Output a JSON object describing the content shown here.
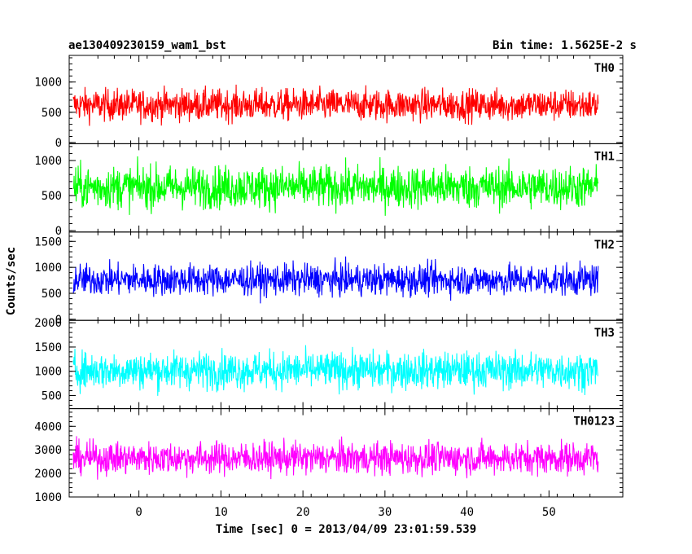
{
  "chart_data": {
    "type": "line",
    "title_left": "ae130409230159_wam1_bst",
    "title_right": "Bin time: 1.5625E-2 s",
    "xlabel": "Time [sec] 0 = 2013/04/09 23:01:59.539",
    "ylabel": "Counts/sec",
    "xlim": [
      -8.5,
      59
    ],
    "x_ticks": [
      0,
      10,
      20,
      30,
      40,
      50
    ],
    "data_x_range": [
      -8,
      56
    ],
    "bin_time": 0.015625,
    "panels": [
      {
        "name": "TH0",
        "color": "#ff0000",
        "ylim": [
          -20,
          1440
        ],
        "y_ticks": [
          0,
          500,
          1000
        ],
        "mean": 620,
        "spread": 130,
        "min": 130,
        "max": 1400
      },
      {
        "name": "TH1",
        "color": "#00ff00",
        "ylim": [
          -20,
          1240
        ],
        "y_ticks": [
          0,
          500,
          1000
        ],
        "mean": 620,
        "spread": 150,
        "min": 60,
        "max": 1240
      },
      {
        "name": "TH2",
        "color": "#0000ff",
        "ylim": [
          -20,
          1680
        ],
        "y_ticks": [
          0,
          500,
          1000,
          1500
        ],
        "mean": 760,
        "spread": 150,
        "min": 120,
        "max": 1580
      },
      {
        "name": "TH3",
        "color": "#00ffff",
        "ylim": [
          230,
          2050
        ],
        "y_ticks": [
          500,
          1000,
          1500,
          2000
        ],
        "mean": 1020,
        "spread": 190,
        "min": 350,
        "max": 2000
      },
      {
        "name": "TH0123",
        "color": "#ff00ff",
        "ylim": [
          1000,
          4750
        ],
        "y_ticks": [
          1000,
          2000,
          3000,
          4000
        ],
        "mean": 2650,
        "spread": 340,
        "min": 1300,
        "max": 4500
      }
    ]
  }
}
